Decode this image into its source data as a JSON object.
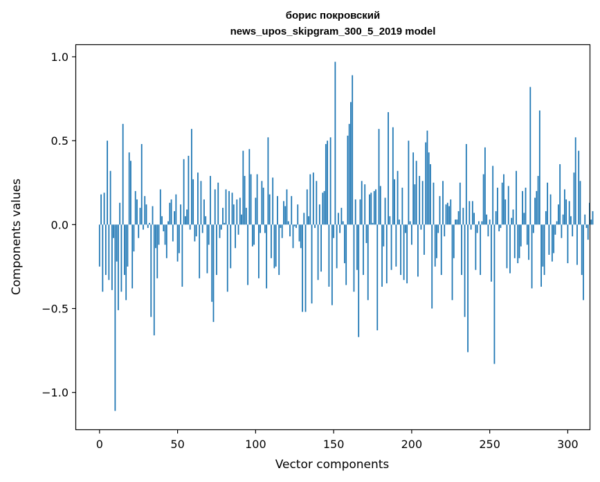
{
  "chart_data": {
    "type": "bar",
    "title": "борис покровский",
    "subtitle": "news_upos_skipgram_300_5_2019 model",
    "xlabel": "Vector components",
    "ylabel": "Components values",
    "xlim": [
      -15,
      314
    ],
    "ylim": [
      -1.22,
      1.07
    ],
    "x_ticks": [
      {
        "value": 0,
        "label": "0"
      },
      {
        "value": 50,
        "label": "50"
      },
      {
        "value": 100,
        "label": "100"
      },
      {
        "value": 150,
        "label": "150"
      },
      {
        "value": 200,
        "label": "200"
      },
      {
        "value": 250,
        "label": "250"
      },
      {
        "value": 300,
        "label": "300"
      }
    ],
    "y_ticks": [
      {
        "value": 1.0,
        "label": "1.0"
      },
      {
        "value": 0.5,
        "label": "0.5"
      },
      {
        "value": 0.0,
        "label": "0.0"
      },
      {
        "value": -0.5,
        "label": "−0.5"
      },
      {
        "value": -1.0,
        "label": "−1.0"
      }
    ],
    "bar_color": "#1f77b4",
    "grid": false,
    "values": [
      -0.25,
      0.18,
      -0.4,
      0.19,
      -0.3,
      0.5,
      -0.33,
      0.32,
      -0.39,
      -0.08,
      -1.11,
      -0.22,
      -0.51,
      0.13,
      -0.4,
      0.6,
      -0.3,
      -0.45,
      -0.25,
      0.43,
      0.38,
      -0.38,
      -0.16,
      0.2,
      0.15,
      -0.08,
      0.1,
      0.48,
      -0.03,
      0.17,
      0.12,
      -0.02,
      0.01,
      -0.55,
      0.11,
      -0.66,
      -0.14,
      -0.32,
      -0.12,
      0.21,
      0.05,
      -0.04,
      -0.12,
      -0.2,
      0.02,
      0.13,
      0.15,
      -0.1,
      0.08,
      0.18,
      -0.22,
      -0.17,
      0.12,
      -0.37,
      0.39,
      0.05,
      0.09,
      0.41,
      -0.03,
      0.57,
      0.27,
      -0.1,
      -0.07,
      0.31,
      -0.32,
      0.26,
      -0.05,
      0.15,
      0.05,
      -0.29,
      -0.12,
      0.29,
      -0.46,
      -0.58,
      0.21,
      -0.3,
      0.25,
      -0.08,
      -0.03,
      0.1,
      0.01,
      0.21,
      -0.4,
      0.2,
      -0.26,
      0.19,
      0.12,
      -0.14,
      0.15,
      -0.06,
      0.16,
      0.06,
      0.44,
      0.29,
      0.1,
      -0.36,
      0.45,
      0.3,
      -0.13,
      -0.12,
      0.16,
      0.3,
      -0.32,
      -0.05,
      0.26,
      0.22,
      -0.05,
      -0.38,
      0.52,
      0.18,
      -0.2,
      0.28,
      -0.26,
      -0.25,
      0.17,
      -0.3,
      -0.02,
      -0.08,
      0.14,
      0.11,
      0.21,
      0.02,
      -0.07,
      0.17,
      -0.14,
      -0.01,
      -0.02,
      0.12,
      -0.1,
      -0.14,
      -0.52,
      0.07,
      -0.52,
      0.21,
      0.05,
      0.3,
      -0.47,
      0.31,
      -0.02,
      0.26,
      -0.33,
      0.12,
      -0.28,
      0.19,
      0.2,
      0.48,
      0.5,
      -0.37,
      0.52,
      -0.48,
      -0.08,
      0.97,
      -0.26,
      0.07,
      -0.05,
      0.1,
      0.02,
      -0.23,
      -0.36,
      0.53,
      0.6,
      0.73,
      0.89,
      -0.4,
      0.15,
      -0.27,
      -0.67,
      0.15,
      0.26,
      -0.3,
      0.24,
      -0.11,
      -0.45,
      0.18,
      0.19,
      0.01,
      0.2,
      0.21,
      -0.63,
      0.57,
      0.23,
      -0.37,
      -0.13,
      0.16,
      -0.35,
      0.67,
      0.05,
      -0.27,
      0.58,
      0.27,
      -0.25,
      0.32,
      0.03,
      -0.3,
      0.22,
      -0.33,
      -0.05,
      -0.35,
      0.5,
      0.02,
      -0.12,
      0.43,
      0.24,
      0.38,
      -0.31,
      0.29,
      -0.03,
      0.26,
      -0.18,
      0.49,
      0.56,
      0.43,
      0.36,
      -0.5,
      0.25,
      -0.25,
      -0.2,
      -0.05,
      0.17,
      -0.3,
      0.26,
      -0.07,
      0.12,
      0.13,
      0.11,
      0.15,
      -0.45,
      -0.2,
      0.03,
      0.03,
      0.08,
      0.25,
      -0.3,
      0.1,
      -0.55,
      0.48,
      -0.76,
      0.14,
      -0.03,
      0.14,
      0.07,
      -0.27,
      -0.05,
      0.02,
      -0.3,
      0.02,
      0.3,
      0.46,
      0.06,
      -0.07,
      0.03,
      -0.34,
      0.35,
      -0.83,
      0.08,
      0.22,
      -0.04,
      -0.02,
      0.25,
      0.3,
      0.15,
      -0.26,
      0.23,
      -0.29,
      0.04,
      0.09,
      -0.2,
      0.32,
      -0.23,
      -0.2,
      -0.13,
      0.2,
      0.07,
      0.22,
      -0.12,
      -0.21,
      0.82,
      -0.38,
      -0.05,
      0.16,
      0.2,
      0.29,
      0.68,
      -0.37,
      -0.25,
      -0.3,
      0.08,
      0.25,
      -0.18,
      0.18,
      -0.22,
      -0.17,
      -0.06,
      0.02,
      0.12,
      0.36,
      -0.08,
      0.06,
      0.21,
      0.15,
      -0.23,
      0.14,
      0.05,
      -0.07,
      0.31,
      0.52,
      -0.24,
      0.44,
      0.26,
      -0.3,
      -0.45,
      0.06,
      -0.02,
      -0.09,
      0.13,
      0.03,
      0.08
    ]
  }
}
